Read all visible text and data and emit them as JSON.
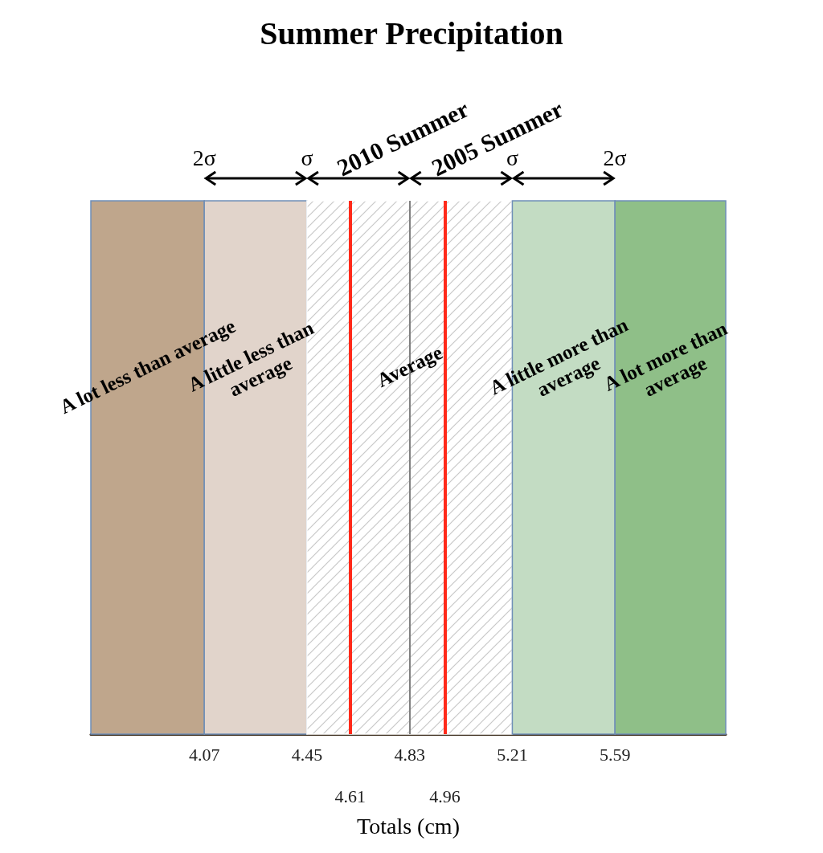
{
  "chart_data": {
    "type": "bar",
    "orientation": "horizontal",
    "title": "Summer Precipitation",
    "xlabel": "Totals (cm)",
    "categories": [
      null
    ],
    "xlim": [
      3.65,
      6.0
    ],
    "xticks": [
      4.07,
      4.45,
      4.83,
      5.21,
      5.59
    ],
    "series": [
      {
        "name": "A lot less than average",
        "color": "#bfa68c",
        "base": [
          3.65
        ],
        "values": [
          0.42
        ]
      },
      {
        "name": "A little less than average",
        "color": "#e1d4cb",
        "base": [
          4.07
        ],
        "values": [
          0.38
        ]
      },
      {
        "name": "Average",
        "color": "#ffffff",
        "base": [
          4.45
        ],
        "values": [
          0.76
        ]
      },
      {
        "name": "A little more than average",
        "color": "#c3dcc3",
        "base": [
          5.21
        ],
        "values": [
          0.38
        ]
      },
      {
        "name": "A lot more than average",
        "color": "#8fbf88",
        "base": [
          5.59
        ],
        "values": [
          0.41
        ]
      }
    ],
    "ref_lines": [
      {
        "axis": "x",
        "value": 4.61,
        "label": "2010 Summer",
        "color": "#ff2a1a"
      },
      {
        "axis": "x",
        "value": 4.83,
        "color": "#808080"
      },
      {
        "axis": "x",
        "value": 4.96,
        "label": "2005 Summer",
        "color": "#ff2a1a"
      }
    ],
    "annotations": [
      "2σ",
      "σ",
      "σ",
      "2σ",
      "4.61",
      "4.96"
    ]
  }
}
